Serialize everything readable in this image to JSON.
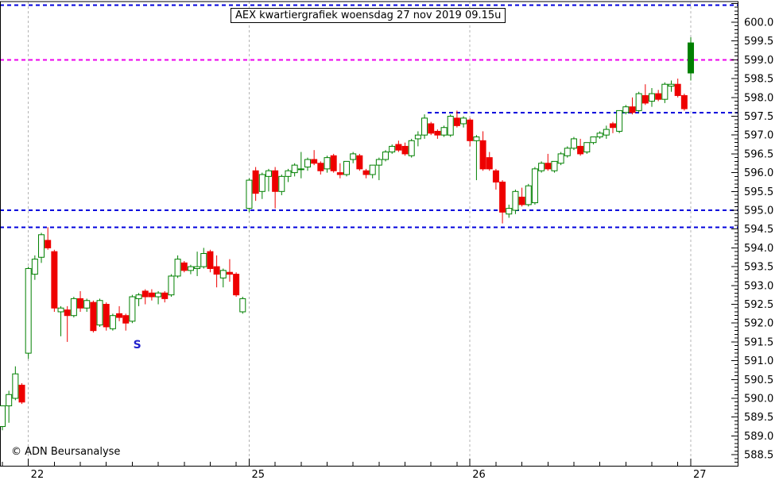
{
  "copyright": "© ADN Beursanalyse",
  "axes": {
    "y_tick_labels": [
      "600.0",
      "599.5",
      "599.0",
      "598.5",
      "598.0",
      "597.5",
      "597.0",
      "596.5",
      "596.0",
      "595.5",
      "595.0",
      "594.5",
      "594.0",
      "593.5",
      "593.0",
      "592.5",
      "592.0",
      "591.5",
      "591.0",
      "590.5",
      "590.0",
      "589.5",
      "589.0",
      "588.5"
    ],
    "y_major_step": 0.5,
    "y_minor_step": 0.1,
    "y_top_value": 600.0
  },
  "chart_data": {
    "type": "candlestick",
    "title": "AEX kwartiergrafiek woensdag 27 nov 2019 09.15u",
    "interval": "15min",
    "ylim": [
      588.2,
      600.55
    ],
    "grid": "vertical-day-lines",
    "up_color": "#008000",
    "down_color": "#ee0000",
    "grid_color": "#b4b4b4",
    "marker": {
      "label": "S",
      "color": "#2222cc",
      "x_index": 21,
      "value": 591.4
    },
    "levels": [
      {
        "value": 600.45,
        "color": "#0000dd"
      },
      {
        "value": 599.0,
        "color": "#ee00ee"
      },
      {
        "value": 597.6,
        "color": "#0000dd",
        "x_start_index": 66
      },
      {
        "value": 595.0,
        "color": "#0000dd"
      },
      {
        "value": 594.55,
        "color": "#0000dd"
      }
    ],
    "sessions": [
      {
        "label": "",
        "candles": [
          [
            589.25,
            589.8,
            589.15,
            589.8
          ],
          [
            589.8,
            590.2,
            589.35,
            590.1
          ],
          [
            590.0,
            590.85,
            589.95,
            590.65
          ],
          [
            590.35,
            590.4,
            589.85,
            589.9
          ]
        ]
      },
      {
        "label": "22",
        "candles": [
          [
            591.2,
            593.5,
            591.05,
            593.45
          ],
          [
            593.3,
            593.8,
            593.15,
            593.7
          ],
          [
            593.75,
            594.4,
            593.6,
            594.35
          ],
          [
            594.2,
            594.55,
            593.95,
            594.0
          ],
          [
            593.9,
            593.95,
            592.3,
            592.4
          ],
          [
            592.3,
            592.45,
            591.65,
            592.4
          ],
          [
            592.35,
            592.45,
            591.5,
            592.2
          ],
          [
            592.2,
            592.7,
            592.15,
            592.65
          ],
          [
            592.65,
            592.85,
            592.3,
            592.4
          ],
          [
            592.4,
            592.65,
            592.3,
            592.6
          ],
          [
            592.55,
            592.6,
            591.75,
            591.8
          ],
          [
            591.95,
            592.65,
            591.9,
            592.6
          ],
          [
            592.5,
            592.55,
            591.8,
            591.9
          ],
          [
            591.85,
            592.25,
            591.8,
            592.2
          ],
          [
            592.25,
            592.45,
            592.05,
            592.15
          ],
          [
            592.2,
            592.25,
            591.8,
            592.0
          ],
          [
            592.05,
            592.75,
            592.0,
            592.7
          ],
          [
            592.65,
            592.8,
            592.45,
            592.75
          ],
          [
            592.85,
            592.9,
            592.5,
            592.7
          ],
          [
            592.8,
            592.9,
            592.6,
            592.7
          ],
          [
            592.7,
            592.85,
            592.5,
            592.8
          ],
          [
            592.8,
            592.85,
            592.55,
            592.65
          ],
          [
            592.75,
            593.3,
            592.7,
            593.25
          ],
          [
            593.25,
            593.8,
            593.2,
            593.7
          ],
          [
            593.6,
            593.65,
            593.35,
            593.4
          ],
          [
            593.4,
            593.55,
            593.3,
            593.5
          ],
          [
            593.45,
            593.9,
            593.25,
            593.5
          ],
          [
            593.5,
            594.0,
            593.45,
            593.85
          ],
          [
            593.9,
            593.95,
            593.35,
            593.45
          ],
          [
            593.5,
            593.8,
            592.95,
            593.3
          ],
          [
            593.2,
            593.45,
            592.95,
            593.4
          ],
          [
            593.35,
            593.7,
            593.1,
            593.3
          ],
          [
            593.3,
            593.35,
            592.7,
            592.75
          ],
          [
            592.3,
            592.7,
            592.25,
            592.65
          ]
        ]
      },
      {
        "label": "25",
        "candles": [
          [
            595.05,
            595.85,
            594.95,
            595.8
          ],
          [
            596.05,
            596.15,
            595.25,
            595.45
          ],
          [
            595.5,
            596.0,
            595.3,
            595.95
          ],
          [
            595.9,
            596.1,
            595.5,
            596.05
          ],
          [
            596.05,
            596.15,
            595.05,
            595.5
          ],
          [
            595.5,
            595.95,
            595.4,
            595.9
          ],
          [
            595.9,
            596.1,
            595.75,
            596.05
          ],
          [
            596.0,
            596.25,
            595.9,
            596.2
          ],
          [
            596.1,
            596.55,
            595.85,
            596.1
          ],
          [
            596.15,
            596.4,
            596.05,
            596.35
          ],
          [
            596.35,
            596.6,
            596.2,
            596.25
          ],
          [
            596.25,
            596.3,
            595.95,
            596.05
          ],
          [
            596.1,
            596.45,
            596.0,
            596.4
          ],
          [
            596.45,
            596.5,
            596.0,
            596.05
          ],
          [
            596.0,
            596.25,
            595.85,
            595.95
          ],
          [
            595.95,
            596.3,
            595.9,
            596.3
          ],
          [
            596.35,
            596.55,
            596.25,
            596.5
          ],
          [
            596.45,
            596.5,
            596.05,
            596.1
          ],
          [
            596.05,
            596.1,
            595.85,
            595.95
          ],
          [
            595.95,
            596.2,
            595.85,
            596.2
          ],
          [
            596.2,
            596.4,
            595.8,
            596.35
          ],
          [
            596.35,
            596.6,
            596.3,
            596.55
          ],
          [
            596.55,
            596.75,
            596.5,
            596.7
          ],
          [
            596.75,
            596.85,
            596.55,
            596.6
          ],
          [
            596.7,
            596.8,
            596.45,
            596.5
          ],
          [
            596.45,
            596.9,
            596.4,
            596.85
          ],
          [
            596.9,
            597.1,
            596.7,
            597.0
          ],
          [
            597.0,
            597.55,
            596.9,
            597.45
          ],
          [
            597.3,
            597.35,
            597.0,
            597.05
          ],
          [
            597.1,
            597.15,
            596.9,
            597.0
          ],
          [
            597.0,
            597.25,
            596.95,
            597.2
          ],
          [
            597.0,
            597.55,
            596.95,
            597.5
          ],
          [
            597.45,
            597.65,
            597.2,
            597.25
          ],
          [
            597.3,
            597.5,
            597.2,
            597.45
          ]
        ]
      },
      {
        "label": "26",
        "candles": [
          [
            597.4,
            597.45,
            596.7,
            596.85
          ],
          [
            596.85,
            597.0,
            595.8,
            596.95
          ],
          [
            596.85,
            597.1,
            596.05,
            596.1
          ],
          [
            596.4,
            596.55,
            596.05,
            596.1
          ],
          [
            596.05,
            596.1,
            595.55,
            595.75
          ],
          [
            595.75,
            595.8,
            594.65,
            594.95
          ],
          [
            594.9,
            595.15,
            594.8,
            595.05
          ],
          [
            595.0,
            595.55,
            594.9,
            595.5
          ],
          [
            595.35,
            595.6,
            595.1,
            595.15
          ],
          [
            595.15,
            595.7,
            595.1,
            595.65
          ],
          [
            595.2,
            596.15,
            595.15,
            596.1
          ],
          [
            596.05,
            596.3,
            596.0,
            596.25
          ],
          [
            596.25,
            596.5,
            596.05,
            596.1
          ],
          [
            596.05,
            596.3,
            596.0,
            596.3
          ],
          [
            596.25,
            596.55,
            596.2,
            596.5
          ],
          [
            596.45,
            596.7,
            596.4,
            596.65
          ],
          [
            596.65,
            596.95,
            596.6,
            596.9
          ],
          [
            596.7,
            596.9,
            596.45,
            596.5
          ],
          [
            596.55,
            596.8,
            596.5,
            596.8
          ],
          [
            596.8,
            596.95,
            596.75,
            596.95
          ],
          [
            596.95,
            597.1,
            596.9,
            597.05
          ],
          [
            597.0,
            597.25,
            596.9,
            597.15
          ],
          [
            597.3,
            597.35,
            597.05,
            597.2
          ],
          [
            597.1,
            597.65,
            597.05,
            597.65
          ],
          [
            597.6,
            597.8,
            597.55,
            597.75
          ],
          [
            597.75,
            598.0,
            597.55,
            597.6
          ],
          [
            597.65,
            598.15,
            597.6,
            598.1
          ],
          [
            598.05,
            598.35,
            597.8,
            597.85
          ],
          [
            597.9,
            598.25,
            597.75,
            598.1
          ],
          [
            598.1,
            598.2,
            597.9,
            597.95
          ],
          [
            597.95,
            598.4,
            597.85,
            598.35
          ],
          [
            598.3,
            598.45,
            598.15,
            598.35
          ],
          [
            598.35,
            598.5,
            598.0,
            598.05
          ],
          [
            598.05,
            598.1,
            597.65,
            597.7
          ]
        ]
      },
      {
        "label": "27",
        "solid_bodies": true,
        "candles": [
          [
            598.65,
            599.6,
            598.45,
            599.45
          ]
        ]
      }
    ]
  }
}
